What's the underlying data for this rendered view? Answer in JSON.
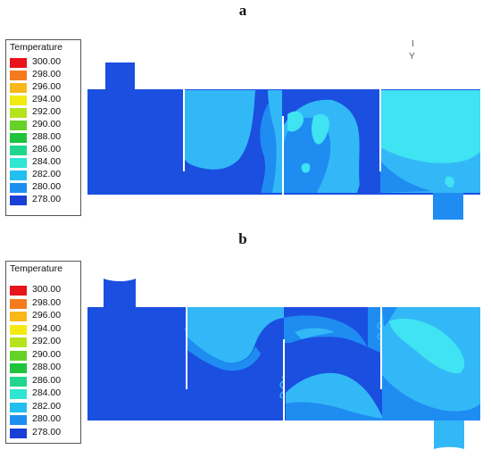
{
  "panels": [
    {
      "label": "a"
    },
    {
      "label": "b"
    }
  ],
  "legend": {
    "title": "Temperature",
    "entries": [
      {
        "value": "300.00",
        "color": "#e8141b"
      },
      {
        "value": "298.00",
        "color": "#f47b1d"
      },
      {
        "value": "296.00",
        "color": "#f8b81a"
      },
      {
        "value": "294.00",
        "color": "#f4ea13"
      },
      {
        "value": "292.00",
        "color": "#b5e31c"
      },
      {
        "value": "290.00",
        "color": "#64d226"
      },
      {
        "value": "288.00",
        "color": "#1fc33c"
      },
      {
        "value": "286.00",
        "color": "#22d58c"
      },
      {
        "value": "284.00",
        "color": "#2ee6d2"
      },
      {
        "value": "282.00",
        "color": "#23bff0"
      },
      {
        "value": "280.00",
        "color": "#1d8ff0"
      },
      {
        "value": "278.00",
        "color": "#1a3fd6"
      }
    ]
  },
  "axis_label": "Y",
  "colors": {
    "deep_blue": "#1a4fe0",
    "mid_blue": "#1f8cf2",
    "light_blue": "#33b8f7",
    "cyan": "#3fe3f2",
    "white": "#ffffff"
  }
}
